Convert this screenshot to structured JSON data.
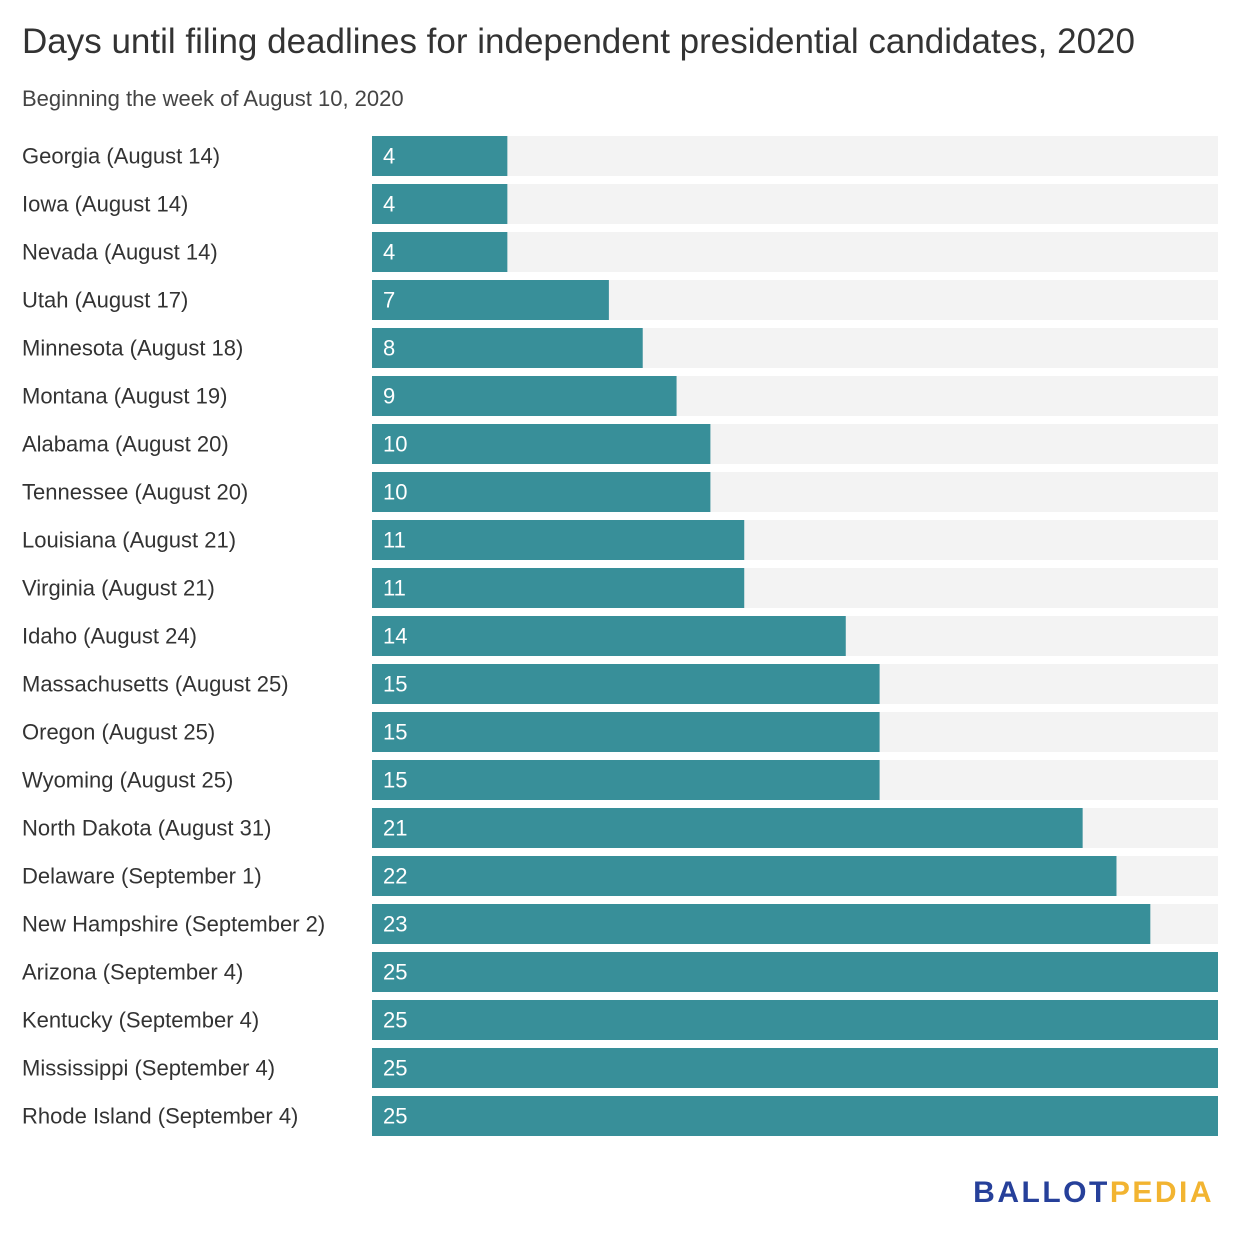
{
  "title": "Days until filing deadlines for independent presidential candidates, 2020",
  "subtitle": "Beginning the week of August 10, 2020",
  "colors": {
    "bar": "#388f99",
    "track": "#f3f3f3",
    "label_text": "#333333",
    "value_text": "#ffffff",
    "logo_primary": "#26409a",
    "logo_accent": "#f2b431"
  },
  "logo": {
    "part_a": "BALLOT",
    "part_b": "PEDIA"
  },
  "chart_data": {
    "type": "bar",
    "orientation": "horizontal",
    "title": "Days until filing deadlines for independent presidential candidates, 2020",
    "subtitle": "Beginning the week of August 10, 2020",
    "categories": [
      "Georgia (August 14)",
      "Iowa (August 14)",
      "Nevada (August 14)",
      "Utah (August 17)",
      "Minnesota (August 18)",
      "Montana (August 19)",
      "Alabama (August 20)",
      "Tennessee (August 20)",
      "Louisiana (August 21)",
      "Virginia (August 21)",
      "Idaho (August 24)",
      "Massachusetts (August 25)",
      "Oregon (August 25)",
      "Wyoming (August 25)",
      "North Dakota (August 31)",
      "Delaware (September 1)",
      "New Hampshire (September 2)",
      "Arizona (September 4)",
      "Kentucky (September 4)",
      "Mississippi (September 4)",
      "Rhode Island (September 4)"
    ],
    "values": [
      4,
      4,
      4,
      7,
      8,
      9,
      10,
      10,
      11,
      11,
      14,
      15,
      15,
      15,
      21,
      22,
      23,
      25,
      25,
      25,
      25
    ],
    "xlim": [
      0,
      25
    ],
    "grid": false,
    "legend": "none"
  }
}
